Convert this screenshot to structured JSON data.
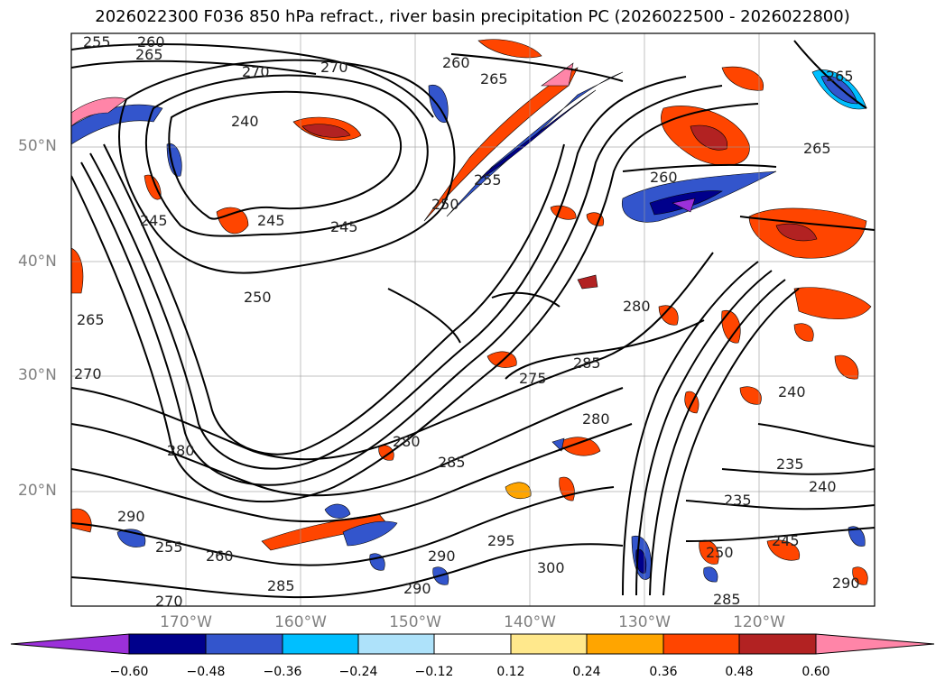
{
  "title": "2026022300 F036 850 hPa refract., river basin precipitation PC (2026022500 - 2026022800)",
  "lat_labels": [
    "50°N",
    "40°N",
    "30°N",
    "20°N"
  ],
  "lon_labels": [
    "170°W",
    "160°W",
    "150°W",
    "140°W",
    "130°W",
    "120°W"
  ],
  "colorbar": {
    "ticks": [
      "−0.60",
      "−0.48",
      "−0.36",
      "−0.24",
      "−0.12",
      "0.12",
      "0.24",
      "0.36",
      "0.48",
      "0.60"
    ],
    "colors": [
      "#9b30d9",
      "#00008b",
      "#3355cc",
      "#00bfff",
      "#aee2fa",
      "#ffffff",
      "#ffe88c",
      "#ffa500",
      "#ff4500",
      "#b22222",
      "#ff85a8",
      "#ff85a8"
    ]
  },
  "contour_labels": {
    "items": [
      "255",
      "260",
      "265",
      "270",
      "270",
      "265",
      "260",
      "240",
      "245",
      "245",
      "250",
      "255",
      "260",
      "265",
      "265",
      "245",
      "250",
      "265",
      "270",
      "275",
      "280",
      "285",
      "280",
      "280",
      "285",
      "290",
      "285",
      "295",
      "290",
      "300",
      "290",
      "235",
      "235",
      "240",
      "245",
      "285",
      "290",
      "250",
      "240",
      "280",
      "260",
      "255",
      "270"
    ]
  }
}
